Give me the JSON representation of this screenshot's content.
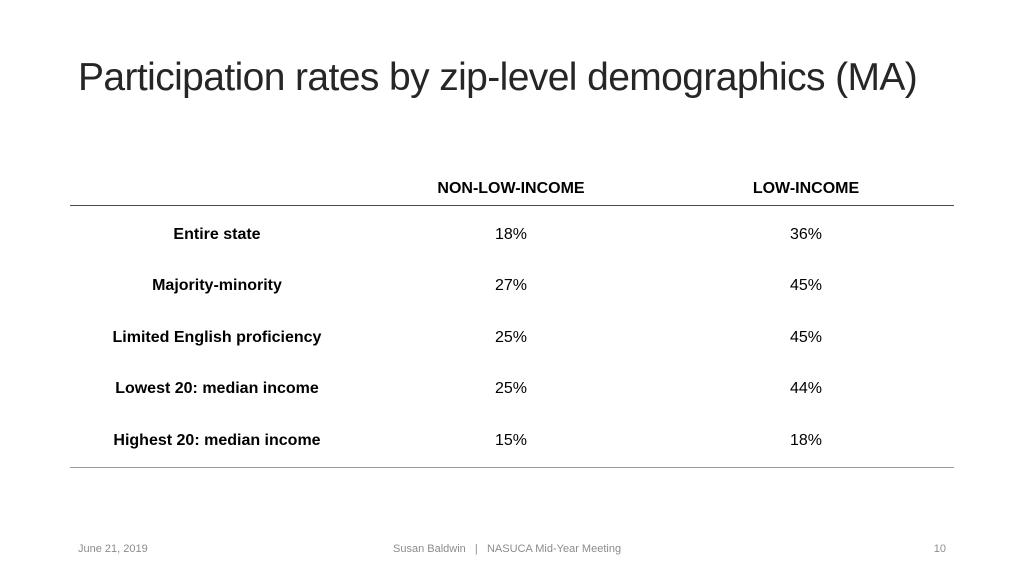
{
  "slide": {
    "title": "Participation rates by zip-level demographics (MA)"
  },
  "table": {
    "headers": {
      "label": "",
      "non_low_income": "NON-LOW-INCOME",
      "low_income": "LOW-INCOME"
    },
    "rows": [
      {
        "label": "Entire state",
        "non_low_income": "18%",
        "low_income": "36%"
      },
      {
        "label": "Majority-minority",
        "non_low_income": "27%",
        "low_income": "45%"
      },
      {
        "label": "Limited English proficiency",
        "non_low_income": "25%",
        "low_income": "45%"
      },
      {
        "label": "Lowest 20: median income",
        "non_low_income": "25%",
        "low_income": "44%"
      },
      {
        "label": "Highest 20: median income",
        "non_low_income": "15%",
        "low_income": "18%"
      }
    ]
  },
  "footer": {
    "date": "June 21, 2019",
    "center": "Susan Baldwin   |   NASUCA Mid-Year Meeting",
    "page_number": "10"
  }
}
